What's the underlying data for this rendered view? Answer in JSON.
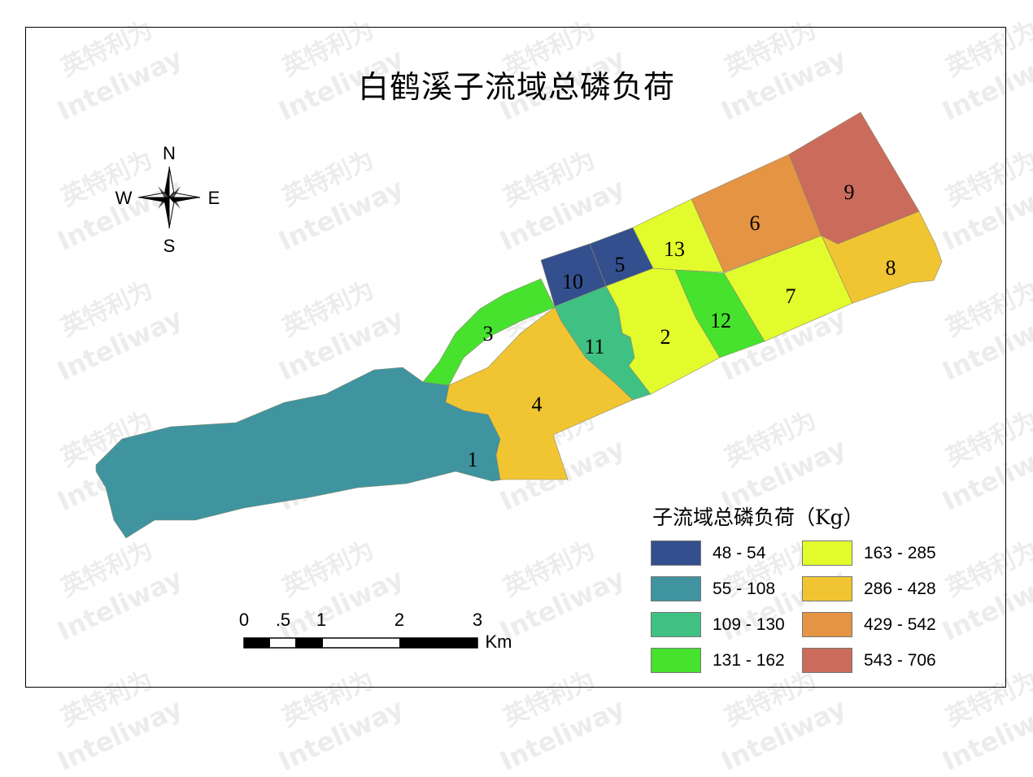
{
  "title": "白鹤溪子流域总磷负荷",
  "compass": {
    "n": "N",
    "s": "S",
    "e": "E",
    "w": "W"
  },
  "scale_bar": {
    "ticks": [
      "0",
      ".5",
      "1",
      "2",
      "3"
    ],
    "unit": "Km"
  },
  "legend": {
    "title": "子流域总磷负荷（Kg）",
    "classes": [
      {
        "label": "48 - 54",
        "color": "#344f8e"
      },
      {
        "label": "55 - 108",
        "color": "#3f94a0"
      },
      {
        "label": "109 - 130",
        "color": "#3fc184"
      },
      {
        "label": "131 - 162",
        "color": "#46e22e"
      },
      {
        "label": "163 - 285",
        "color": "#e2fb2c"
      },
      {
        "label": "286 - 428",
        "color": "#f1c532"
      },
      {
        "label": "429 - 542",
        "color": "#e59443"
      },
      {
        "label": "543 - 706",
        "color": "#cb6b5c"
      }
    ]
  },
  "subbasins": [
    {
      "id": "1",
      "class": 1
    },
    {
      "id": "2",
      "class": 4
    },
    {
      "id": "3",
      "class": 3
    },
    {
      "id": "4",
      "class": 5
    },
    {
      "id": "5",
      "class": 0
    },
    {
      "id": "6",
      "class": 6
    },
    {
      "id": "7",
      "class": 4
    },
    {
      "id": "8",
      "class": 5
    },
    {
      "id": "9",
      "class": 7
    },
    {
      "id": "10",
      "class": 0
    },
    {
      "id": "11",
      "class": 2
    },
    {
      "id": "12",
      "class": 3
    },
    {
      "id": "13",
      "class": 4
    }
  ],
  "watermark": [
    "英特利为",
    "Inteliway"
  ]
}
